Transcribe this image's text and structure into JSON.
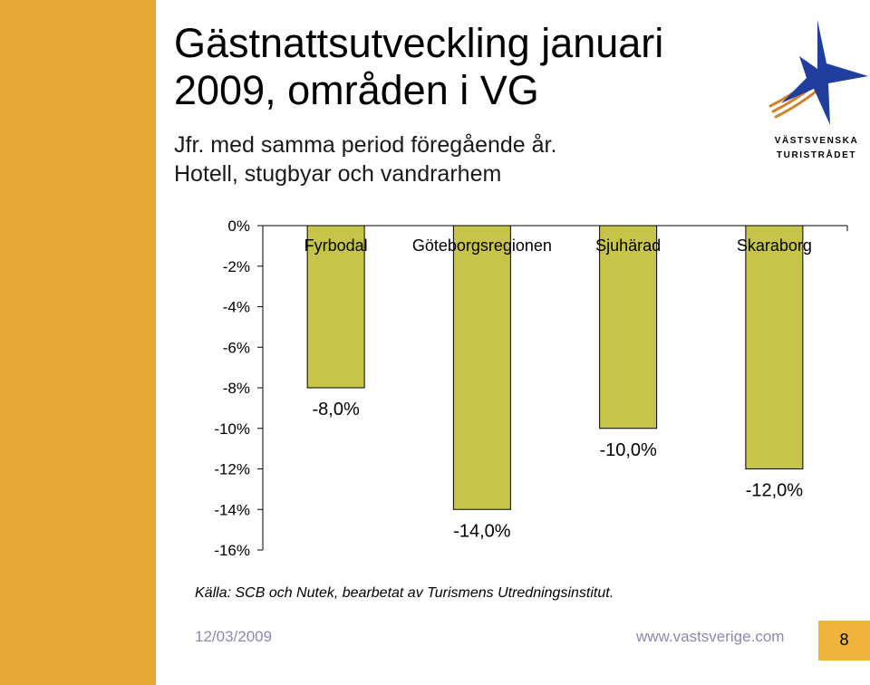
{
  "slide": {
    "title": "Gästnattsutveckling januari 2009, områden i VG",
    "subtitle_line1": "Jfr. med samma period föregående år.",
    "subtitle_line2": "Hotell, stugbyar och vandrarhem",
    "source": "Källa: SCB och Nutek, bearbetat av Turismens Utredningsinstitut.",
    "footer_date": "12/03/2009",
    "footer_url": "www.vastsverige.com",
    "page_number": "8",
    "logo_text_line1": "VÄSTSVENSKA",
    "logo_text_line2": "TURISTRÅDET"
  },
  "colors": {
    "sidebar": "#E6A832",
    "bar_fill": "#C6C54A",
    "page_box": "#F0B43A",
    "footer_text": "#8a8ab0",
    "logo_star": "#1f3e9e",
    "logo_stripe": "#d1822a"
  },
  "chart_data": {
    "type": "bar",
    "categories": [
      "Fyrbodal",
      "Göteborgsregionen",
      "Sjuhärad",
      "Skaraborg"
    ],
    "values": [
      -8.0,
      -14.0,
      -10.0,
      -12.0
    ],
    "data_labels": [
      "-8,0%",
      "-14,0%",
      "-10,0%",
      "-12,0%"
    ],
    "ylim": [
      -16,
      0
    ],
    "yticks": [
      0,
      -2,
      -4,
      -6,
      -8,
      -10,
      -12,
      -14,
      -16
    ],
    "ytick_labels": [
      "0%",
      "-2%",
      "-4%",
      "-6%",
      "-8%",
      "-10%",
      "-12%",
      "-14%",
      "-16%"
    ],
    "category_labels_position": "top",
    "grid": false,
    "legend": false
  }
}
